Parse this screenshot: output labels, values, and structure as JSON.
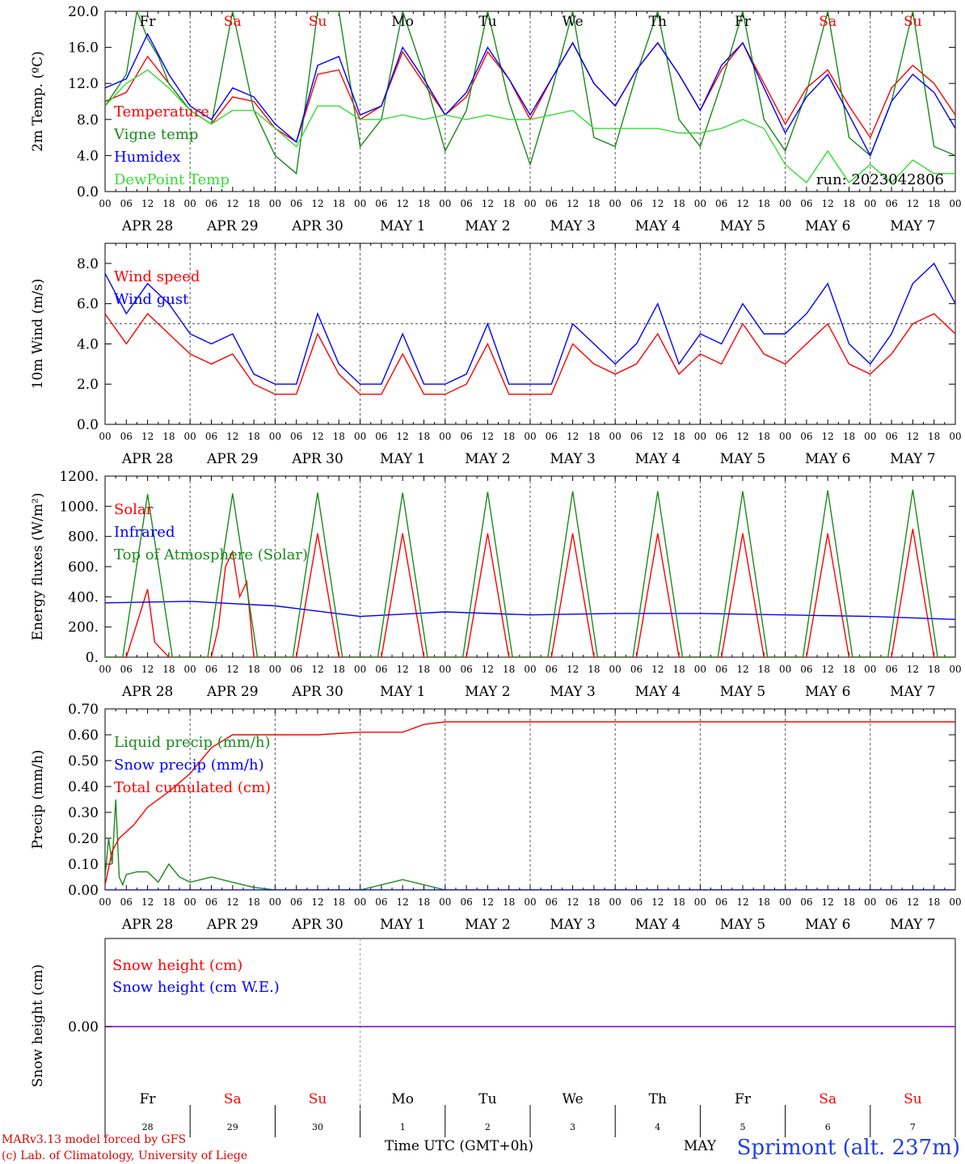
{
  "colors": {
    "red": "#ff0000",
    "green": "#1a8a1a",
    "blue": "#0000ff",
    "lightgreen": "#33dd33",
    "purple": "#8000c0",
    "weekday": "#000000",
    "weekend": "#ff0000"
  },
  "days": [
    {
      "abbr": "Fr",
      "date": "APR 28",
      "num": "28",
      "weekend": false
    },
    {
      "abbr": "Sa",
      "date": "APR 29",
      "num": "29",
      "weekend": true
    },
    {
      "abbr": "Su",
      "date": "APR 30",
      "num": "30",
      "weekend": true
    },
    {
      "abbr": "Mo",
      "date": "MAY  1",
      "num": "1",
      "weekend": false
    },
    {
      "abbr": "Tu",
      "date": "MAY  2",
      "num": "2",
      "weekend": false
    },
    {
      "abbr": "We",
      "date": "MAY  3",
      "num": "3",
      "weekend": false
    },
    {
      "abbr": "Th",
      "date": "MAY  4",
      "num": "4",
      "weekend": false
    },
    {
      "abbr": "Fr",
      "date": "MAY  5",
      "num": "5",
      "weekend": false
    },
    {
      "abbr": "Sa",
      "date": "MAY  6",
      "num": "6",
      "weekend": true
    },
    {
      "abbr": "Su",
      "date": "MAY  7",
      "num": "7",
      "weekend": true
    }
  ],
  "hour_labels": [
    "00",
    "06",
    "12",
    "18"
  ],
  "run_label": "run: 2023042806",
  "footer": {
    "model": "MARv3.13 model forced by GFS",
    "lab": "(c) Lab. of Climatology, University of Liege",
    "xlabel": "Time UTC (GMT+0h)",
    "month": "MAY",
    "station": "Sprimont (alt. 237m)"
  },
  "chart_data": [
    {
      "type": "line",
      "ylabel": "2m Temp. (ºC)",
      "ylim": [
        0,
        20
      ],
      "yticks": [
        "0.0",
        "4.0",
        "8.0",
        "12.0",
        "16.0",
        "20.0"
      ],
      "x_unit": "hours since APR 28 00 UTC",
      "grid": "dotted day separators",
      "series": [
        {
          "name": "Temperature",
          "color": "red",
          "x": [
            0,
            6,
            12,
            18,
            24,
            30,
            36,
            42,
            48,
            54,
            60,
            66,
            72,
            78,
            84,
            90,
            96,
            102,
            108,
            114,
            120,
            126,
            132,
            138,
            144,
            150,
            156,
            162,
            168,
            174,
            180,
            186,
            192,
            198,
            204,
            210,
            216,
            222,
            228,
            234,
            240
          ],
          "y": [
            10,
            11,
            15,
            12,
            9,
            7.5,
            10.5,
            10,
            7,
            5.5,
            13,
            13.5,
            8,
            9.5,
            15.5,
            12,
            8.5,
            10.5,
            15.5,
            12.5,
            8,
            12.5,
            16.5,
            12,
            9.5,
            13.5,
            16.5,
            13,
            9,
            13.5,
            16.5,
            12,
            7.5,
            11.5,
            13.5,
            9.5,
            6,
            11.5,
            14,
            12,
            8.5
          ]
        },
        {
          "name": "Vigne temp",
          "color": "green",
          "x": [
            0,
            6,
            9,
            12,
            15,
            18,
            24,
            30,
            36,
            42,
            48,
            54,
            60,
            66,
            72,
            78,
            84,
            90,
            96,
            102,
            108,
            114,
            120,
            126,
            132,
            138,
            144,
            150,
            156,
            162,
            168,
            174,
            180,
            186,
            192,
            198,
            204,
            210,
            216,
            222,
            228,
            234,
            240
          ],
          "y": [
            9.5,
            13,
            20,
            17,
            15,
            12,
            9,
            7.5,
            20,
            9,
            4,
            2,
            20,
            20,
            5,
            8,
            20,
            13,
            4.5,
            9,
            20,
            10,
            3,
            11,
            20,
            6,
            5,
            13,
            20,
            8,
            5,
            12,
            20,
            8,
            4.5,
            11,
            20,
            6,
            4,
            10,
            20,
            5,
            4
          ]
        },
        {
          "name": "Humidex",
          "color": "blue",
          "x": [
            0,
            6,
            12,
            18,
            24,
            30,
            36,
            42,
            48,
            54,
            60,
            66,
            72,
            78,
            84,
            90,
            96,
            102,
            108,
            114,
            120,
            126,
            132,
            138,
            144,
            150,
            156,
            162,
            168,
            174,
            180,
            186,
            192,
            198,
            204,
            210,
            216,
            222,
            228,
            234,
            240
          ],
          "y": [
            11.5,
            12.5,
            17.5,
            13,
            9.5,
            8,
            11.5,
            10.5,
            7.5,
            5.5,
            14,
            15,
            8.5,
            9.5,
            16,
            12.5,
            8.5,
            11,
            16,
            12.5,
            8.5,
            12.5,
            16.5,
            12,
            9.5,
            13.5,
            16.5,
            13,
            9,
            14,
            16.5,
            11.5,
            6.5,
            10.5,
            13,
            8.5,
            4,
            10,
            13,
            11,
            7
          ]
        },
        {
          "name": "DewPoint Temp",
          "color": "lightgreen",
          "x": [
            0,
            6,
            12,
            18,
            24,
            30,
            36,
            42,
            48,
            54,
            60,
            66,
            72,
            78,
            84,
            90,
            96,
            102,
            108,
            114,
            120,
            126,
            132,
            138,
            144,
            150,
            156,
            162,
            168,
            174,
            180,
            186,
            192,
            198,
            204,
            210,
            216,
            222,
            228,
            234,
            240
          ],
          "y": [
            9.5,
            12,
            13.5,
            11.5,
            9,
            7.5,
            9,
            9,
            7,
            5,
            9.5,
            9.5,
            8,
            8,
            8.5,
            8,
            8.5,
            8,
            8.5,
            8,
            8,
            8.5,
            9,
            7,
            7,
            7,
            7,
            6.5,
            6.5,
            7,
            8,
            7,
            3,
            1,
            4.5,
            1,
            3,
            1,
            3.5,
            2,
            2
          ]
        }
      ]
    },
    {
      "type": "line",
      "ylabel": "10m Wind (m/s)",
      "ylim": [
        0,
        9
      ],
      "yticks": [
        "0.0",
        "2.0",
        "4.0",
        "6.0",
        "8.0"
      ],
      "reference_line": 5,
      "series": [
        {
          "name": "Wind speed",
          "color": "red",
          "x": [
            0,
            6,
            12,
            18,
            24,
            30,
            36,
            42,
            48,
            54,
            60,
            66,
            72,
            78,
            84,
            90,
            96,
            102,
            108,
            114,
            120,
            126,
            132,
            138,
            144,
            150,
            156,
            162,
            168,
            174,
            180,
            186,
            192,
            198,
            204,
            210,
            216,
            222,
            228,
            234,
            240
          ],
          "y": [
            5.5,
            4,
            5.5,
            4.5,
            3.5,
            3,
            3.5,
            2,
            1.5,
            1.5,
            4.5,
            2.5,
            1.5,
            1.5,
            3.5,
            1.5,
            1.5,
            2,
            4,
            1.5,
            1.5,
            1.5,
            4,
            3,
            2.5,
            3,
            4.5,
            2.5,
            3.5,
            3,
            5,
            3.5,
            3,
            4,
            5,
            3,
            2.5,
            3.5,
            5,
            5.5,
            4.5
          ]
        },
        {
          "name": "Wind gust",
          "color": "blue",
          "x": [
            0,
            6,
            12,
            18,
            24,
            30,
            36,
            42,
            48,
            54,
            60,
            66,
            72,
            78,
            84,
            90,
            96,
            102,
            108,
            114,
            120,
            126,
            132,
            138,
            144,
            150,
            156,
            162,
            168,
            174,
            180,
            186,
            192,
            198,
            204,
            210,
            216,
            222,
            228,
            234,
            240
          ],
          "y": [
            7.5,
            5.5,
            7,
            6,
            4.5,
            4,
            4.5,
            2.5,
            2,
            2,
            5.5,
            3,
            2,
            2,
            4.5,
            2,
            2,
            2.5,
            5,
            2,
            2,
            2,
            5,
            4,
            3,
            4,
            6,
            3,
            4.5,
            4,
            6,
            4.5,
            4.5,
            5.5,
            7,
            4,
            3,
            4.5,
            7,
            8,
            6
          ]
        }
      ]
    },
    {
      "type": "line",
      "ylabel": "Energy fluxes (W/m²)",
      "ylim": [
        0,
        1200
      ],
      "yticks": [
        "0.",
        "200.",
        "400.",
        "600.",
        "800.",
        "1000.",
        "1200."
      ],
      "series": [
        {
          "name": "Solar",
          "color": "red",
          "x": [
            0,
            6,
            8,
            10,
            12,
            14,
            16,
            18,
            24,
            30,
            32,
            34,
            36,
            38,
            40,
            42,
            48,
            54,
            60,
            66,
            72,
            78,
            84,
            90,
            96,
            102,
            108,
            114,
            120,
            126,
            132,
            138,
            144,
            150,
            156,
            162,
            168,
            174,
            180,
            186,
            192,
            198,
            204,
            210,
            216,
            222,
            228,
            234,
            240
          ],
          "y": [
            0,
            0,
            150,
            300,
            450,
            100,
            50,
            0,
            0,
            0,
            200,
            600,
            700,
            400,
            500,
            0,
            0,
            0,
            820,
            0,
            0,
            0,
            820,
            0,
            0,
            0,
            820,
            0,
            0,
            0,
            820,
            0,
            0,
            0,
            820,
            0,
            0,
            0,
            820,
            0,
            0,
            0,
            820,
            0,
            0,
            0,
            850,
            0,
            0
          ]
        },
        {
          "name": "Infrared",
          "color": "blue",
          "x": [
            0,
            24,
            48,
            72,
            96,
            120,
            144,
            168,
            192,
            216,
            240
          ],
          "y": [
            360,
            370,
            340,
            270,
            300,
            280,
            290,
            290,
            280,
            270,
            250
          ]
        },
        {
          "name": "Top of Atmosphere (Solar)",
          "color": "green",
          "x": [
            0,
            5,
            12,
            19,
            24,
            29,
            36,
            43,
            48,
            53,
            60,
            67,
            72,
            77,
            84,
            91,
            96,
            101,
            108,
            115,
            120,
            125,
            132,
            139,
            144,
            149,
            156,
            163,
            168,
            173,
            180,
            187,
            192,
            197,
            204,
            211,
            216,
            221,
            228,
            235,
            240
          ],
          "y": [
            0,
            0,
            1080,
            0,
            0,
            0,
            1085,
            0,
            0,
            0,
            1090,
            0,
            0,
            0,
            1090,
            0,
            0,
            0,
            1095,
            0,
            0,
            0,
            1100,
            0,
            0,
            0,
            1100,
            0,
            0,
            0,
            1100,
            0,
            0,
            0,
            1105,
            0,
            0,
            0,
            1110,
            0,
            0
          ]
        }
      ]
    },
    {
      "type": "line",
      "ylabel": "Precip (mm/h)",
      "ylim": [
        0,
        0.7
      ],
      "yticks": [
        "0.00",
        "0.10",
        "0.20",
        "0.30",
        "0.40",
        "0.50",
        "0.60",
        "0.70"
      ],
      "series": [
        {
          "name": "Liquid precip (mm/h)",
          "color": "green",
          "x": [
            0,
            1,
            2,
            3,
            4,
            5,
            6,
            9,
            12,
            15,
            18,
            21,
            24,
            30,
            36,
            42,
            48,
            60,
            72,
            84,
            96,
            120,
            240
          ],
          "y": [
            0.05,
            0.2,
            0.1,
            0.35,
            0.05,
            0.02,
            0.06,
            0.07,
            0.07,
            0.03,
            0.1,
            0.05,
            0.03,
            0.05,
            0.03,
            0.01,
            0,
            0,
            0,
            0.04,
            0,
            0,
            0
          ]
        },
        {
          "name": "Snow precip (mm/h)",
          "color": "blue",
          "x": [
            0,
            240
          ],
          "y": [
            0,
            0
          ]
        },
        {
          "name": "Total cumulated (cm)",
          "color": "red",
          "x": [
            0,
            2,
            4,
            8,
            12,
            18,
            24,
            30,
            36,
            42,
            48,
            60,
            72,
            84,
            90,
            96,
            120,
            240
          ],
          "y": [
            0.02,
            0.15,
            0.2,
            0.25,
            0.32,
            0.38,
            0.45,
            0.55,
            0.6,
            0.6,
            0.6,
            0.6,
            0.61,
            0.61,
            0.64,
            0.65,
            0.65,
            0.65
          ]
        }
      ]
    },
    {
      "type": "line",
      "ylabel": "Snow height (cm)",
      "ytick": "0.00",
      "series": [
        {
          "name": "Snow height (cm)",
          "color": "red",
          "x": [
            0,
            240
          ],
          "y": [
            0,
            0
          ]
        },
        {
          "name": "Snow height (cm W.E.)",
          "color": "blue",
          "x": [
            0,
            240
          ],
          "y": [
            0,
            0
          ]
        }
      ]
    }
  ]
}
